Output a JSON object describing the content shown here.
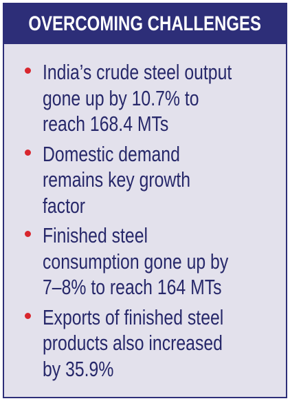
{
  "header": {
    "title": "OVERCOMING CHALLENGES"
  },
  "bullets": [
    {
      "lines": [
        "India’s crude steel output",
        "gone up by 10.7% to",
        "reach 168.4 MTs"
      ]
    },
    {
      "lines": [
        "Domestic demand",
        "remains key growth",
        "factor"
      ]
    },
    {
      "lines": [
        "Finished steel",
        "consumption gone up by",
        "7–8% to reach 164 MTs"
      ]
    },
    {
      "lines": [
        "Exports of finished steel",
        "products also increased",
        "by 35.9%"
      ]
    }
  ]
}
